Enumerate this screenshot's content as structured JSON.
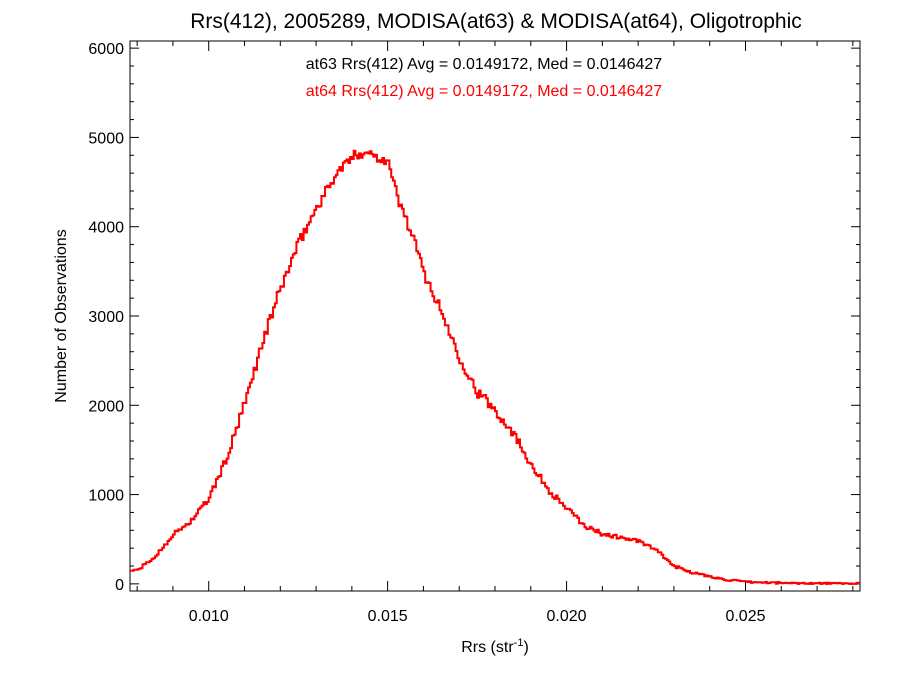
{
  "chart_data": {
    "type": "histogram",
    "title": "Rrs(412), 2005289, MODISA(at63) & MODISA(at64), Oligotrophic",
    "xlabel": "Rrs (str",
    "xlabel_sup": "-1",
    "xlabel_suffix": ")",
    "ylabel": "Number of Observations",
    "xlim": [
      0.0078,
      0.0282
    ],
    "ylim": [
      -80,
      6080
    ],
    "xticks": [
      0.01,
      0.015,
      0.02,
      0.025
    ],
    "xtick_labels": [
      "0.010",
      "0.015",
      "0.020",
      "0.025"
    ],
    "yticks": [
      0,
      1000,
      2000,
      3000,
      4000,
      5000,
      6000
    ],
    "ytick_labels": [
      "0",
      "1000",
      "2000",
      "3000",
      "4000",
      "5000",
      "6000"
    ],
    "annotations": [
      {
        "text": "at63 Rrs(412) Avg = 0.0149172, Med = 0.0146427",
        "color": "#000000"
      },
      {
        "text": "at64 Rrs(412) Avg = 0.0149172, Med = 0.0146427",
        "color": "#ff0000"
      }
    ],
    "series": [
      {
        "name": "at63",
        "color": "#000000",
        "x": [
          0.008,
          0.0085,
          0.009,
          0.0095,
          0.01,
          0.0105,
          0.011,
          0.0115,
          0.012,
          0.0125,
          0.013,
          0.0135,
          0.0138,
          0.0141,
          0.0144,
          0.0147,
          0.015,
          0.0153,
          0.0157,
          0.016,
          0.0165,
          0.017,
          0.0175,
          0.018,
          0.0185,
          0.019,
          0.0195,
          0.02,
          0.0205,
          0.021,
          0.0215,
          0.022,
          0.0225,
          0.023,
          0.0235,
          0.024,
          0.0245,
          0.025,
          0.026,
          0.027,
          0.0282
        ],
        "y": [
          150,
          300,
          550,
          700,
          950,
          1400,
          2000,
          2700,
          3300,
          3800,
          4200,
          4550,
          4700,
          4800,
          4850,
          4780,
          4750,
          4300,
          3900,
          3500,
          3050,
          2550,
          2150,
          1950,
          1700,
          1350,
          1050,
          850,
          650,
          560,
          520,
          480,
          380,
          200,
          130,
          80,
          45,
          20,
          10,
          5,
          2
        ]
      },
      {
        "name": "at64",
        "color": "#ff0000",
        "x": [
          0.008,
          0.0085,
          0.009,
          0.0095,
          0.01,
          0.0105,
          0.011,
          0.0115,
          0.012,
          0.0125,
          0.013,
          0.0135,
          0.0138,
          0.0141,
          0.0144,
          0.0147,
          0.015,
          0.0153,
          0.0157,
          0.016,
          0.0165,
          0.017,
          0.0175,
          0.018,
          0.0185,
          0.019,
          0.0195,
          0.02,
          0.0205,
          0.021,
          0.0215,
          0.022,
          0.0225,
          0.023,
          0.0235,
          0.024,
          0.0245,
          0.025,
          0.026,
          0.027,
          0.0282
        ],
        "y": [
          150,
          300,
          550,
          700,
          950,
          1400,
          2000,
          2700,
          3300,
          3800,
          4200,
          4550,
          4700,
          4800,
          4850,
          4780,
          4750,
          4300,
          3900,
          3500,
          3050,
          2550,
          2150,
          1950,
          1700,
          1350,
          1050,
          850,
          650,
          560,
          520,
          480,
          380,
          200,
          130,
          80,
          45,
          20,
          10,
          5,
          2
        ]
      }
    ],
    "grid": false
  }
}
